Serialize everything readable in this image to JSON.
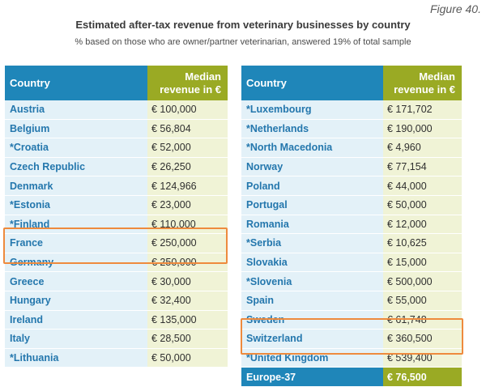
{
  "figure_label": "Figure 40.",
  "title": "Estimated after-tax revenue from veterinary businesses by country",
  "subtitle": "% based on those who are owner/partner veterinarian, answered 19% of total sample",
  "headers": {
    "country": "Country",
    "revenue_line1": "Median",
    "revenue_line2": "revenue in €"
  },
  "left_table": [
    {
      "country": "Austria",
      "value": "€ 100,000"
    },
    {
      "country": "Belgium",
      "value": "€ 56,804"
    },
    {
      "country": "*Croatia",
      "value": "€ 52,000"
    },
    {
      "country": "Czech Republic",
      "value": "€ 26,250"
    },
    {
      "country": "Denmark",
      "value": "€ 124,966"
    },
    {
      "country": "*Estonia",
      "value": "€ 23,000"
    },
    {
      "country": "*Finland",
      "value": "€ 110,000"
    },
    {
      "country": "France",
      "value": "€ 250,000"
    },
    {
      "country": "Germany",
      "value": "€ 250,000"
    },
    {
      "country": "Greece",
      "value": "€ 30,000"
    },
    {
      "country": "Hungary",
      "value": "€ 32,400"
    },
    {
      "country": "Ireland",
      "value": "€ 135,000"
    },
    {
      "country": "Italy",
      "value": "€ 28,500"
    },
    {
      "country": "*Lithuania",
      "value": "€ 50,000"
    }
  ],
  "right_table": [
    {
      "country": "*Luxembourg",
      "value": "€ 171,702"
    },
    {
      "country": "*Netherlands",
      "value": "€ 190,000"
    },
    {
      "country": "*North Macedonia",
      "value": "€ 4,960"
    },
    {
      "country": "Norway",
      "value": "€ 77,154"
    },
    {
      "country": "Poland",
      "value": "€ 44,000"
    },
    {
      "country": "Portugal",
      "value": "€ 50,000"
    },
    {
      "country": "Romania",
      "value": "€ 12,000"
    },
    {
      "country": "*Serbia",
      "value": "€ 10,625"
    },
    {
      "country": "Slovakia",
      "value": "€ 15,000"
    },
    {
      "country": "*Slovenia",
      "value": "€ 500,000"
    },
    {
      "country": "Spain",
      "value": "€ 55,000"
    },
    {
      "country": "Sweden",
      "value": "€ 61,748"
    },
    {
      "country": "Switzerland",
      "value": "€ 360,500"
    },
    {
      "country": "*United Kingdom",
      "value": "€ 539,400"
    }
  ],
  "total": {
    "country": "Europe-37",
    "value": "€ 76,500"
  },
  "colors": {
    "header_blue": "#1f86b9",
    "header_green": "#9aaa24",
    "country_text": "#2477ad",
    "country_bg": "#e3f1f8",
    "value_bg": "#f0f3d6",
    "highlight": "#ee8a3d"
  },
  "highlighted_rows": [
    "France",
    "Germany",
    "Switzerland",
    "*United Kingdom"
  ]
}
